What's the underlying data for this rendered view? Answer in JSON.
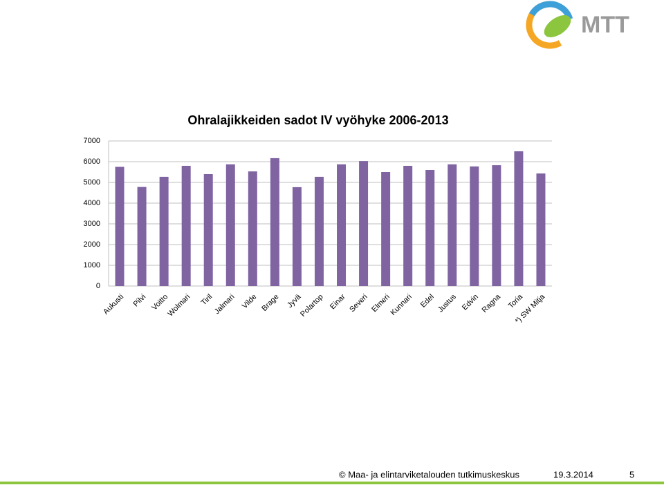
{
  "chart_data": {
    "type": "bar",
    "title": "Ohralajikkeiden sadot IV vyöhyke 2006-2013",
    "categories": [
      "Aukusti",
      "Pilvi",
      "Voitto",
      "Wolmari",
      "Tiril",
      "Jalmari",
      "Vilde",
      "Brage",
      "Jyvä",
      "Polartop",
      "Einar",
      "Severi",
      "Elmeri",
      "Kunnari",
      "Edel",
      "Justus",
      "Edvin",
      "Ragna",
      "Toria",
      "*) SW Mitja"
    ],
    "values": [
      5750,
      4780,
      5270,
      5800,
      5400,
      5870,
      5530,
      6170,
      4770,
      5270,
      5870,
      6030,
      5500,
      5800,
      5600,
      5870,
      5770,
      5830,
      6500,
      5430
    ],
    "color": "#8064a2",
    "ylim": [
      0,
      7000
    ],
    "yticks": [
      0,
      1000,
      2000,
      3000,
      4000,
      5000,
      6000,
      7000
    ],
    "grid": true
  },
  "logo": "MTT",
  "footer": {
    "copyright": "© Maa- ja elintarviketalouden tutkimuskeskus",
    "date": "19.3.2014",
    "page": "5"
  }
}
